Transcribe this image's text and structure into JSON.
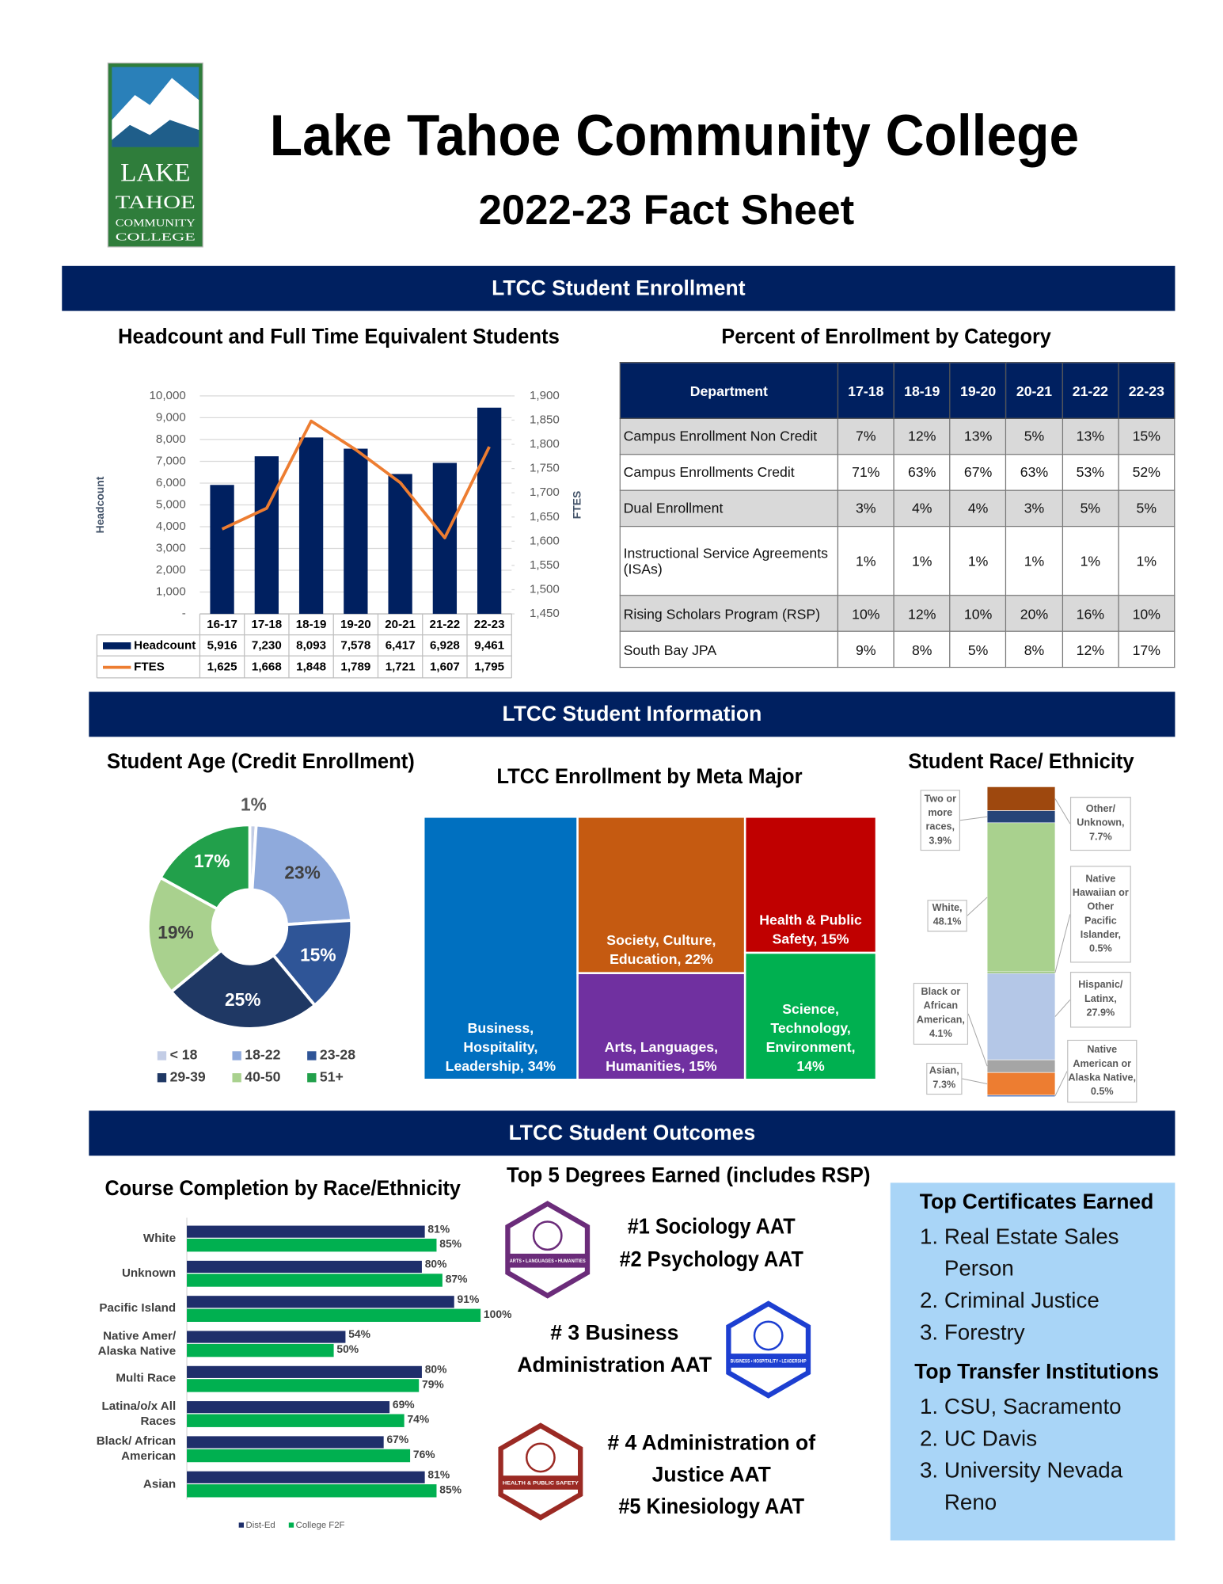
{
  "header": {
    "logo": [
      "LAKE",
      "TAHOE",
      "COMMUNITY",
      "COLLEGE"
    ],
    "title": "Lake Tahoe Community College",
    "subtitle": "2022-23 Fact Sheet"
  },
  "sections": [
    "LTCC Student Enrollment",
    "LTCC Student Information",
    "LTCC Student Outcomes"
  ],
  "enrollment_table": {
    "title": "Percent of Enrollment by Category",
    "columns": [
      "Department",
      "17-18",
      "18-19",
      "19-20",
      "20-21",
      "21-22",
      "22-23"
    ],
    "rows": [
      [
        "Campus Enrollment Non Credit",
        "7%",
        "12%",
        "13%",
        "5%",
        "13%",
        "15%"
      ],
      [
        "Campus Enrollments Credit",
        "71%",
        "63%",
        "67%",
        "63%",
        "53%",
        "52%"
      ],
      [
        "Dual Enrollment",
        "3%",
        "4%",
        "4%",
        "3%",
        "5%",
        "5%"
      ],
      [
        "Instructional Service Agreements (ISAs)",
        "1%",
        "1%",
        "1%",
        "1%",
        "1%",
        "1%"
      ],
      [
        "Rising Scholars Program (RSP)",
        "10%",
        "12%",
        "10%",
        "20%",
        "16%",
        "10%"
      ],
      [
        "South Bay JPA",
        "9%",
        "8%",
        "5%",
        "8%",
        "12%",
        "17%"
      ]
    ]
  },
  "chart_data": [
    {
      "type": "bar",
      "title": "Headcount and Full Time Equivalent Students",
      "categories": [
        "16-17",
        "17-18",
        "18-19",
        "19-20",
        "20-21",
        "21-22",
        "22-23"
      ],
      "series": [
        {
          "name": "Headcount",
          "type": "bar",
          "color": "#002060",
          "values": [
            5916,
            7230,
            8093,
            7578,
            6417,
            6928,
            9461
          ],
          "value_labels": [
            "5,916",
            "7,230",
            "8,093",
            "7,578",
            "6,417",
            "6,928",
            "9,461"
          ]
        },
        {
          "name": "FTES",
          "type": "line",
          "axis": "y2",
          "color": "#ed7d31",
          "values": [
            1625,
            1668,
            1848,
            1789,
            1721,
            1607,
            1795
          ],
          "value_labels": [
            "1,625",
            "1,668",
            "1,848",
            "1,789",
            "1,721",
            "1,607",
            "1,795"
          ]
        }
      ],
      "ylabel": "Headcount",
      "y2label": "FTES",
      "ylim": [
        0,
        10000
      ],
      "yticks": [
        {
          "value": 0,
          "label": "-"
        },
        {
          "value": 1000,
          "label": "1,000"
        },
        {
          "value": 2000,
          "label": "2,000"
        },
        {
          "value": 3000,
          "label": "3,000"
        },
        {
          "value": 4000,
          "label": "4,000"
        },
        {
          "value": 5000,
          "label": "5,000"
        },
        {
          "value": 6000,
          "label": "6,000"
        },
        {
          "value": 7000,
          "label": "7,000"
        },
        {
          "value": 8000,
          "label": "8,000"
        },
        {
          "value": 9000,
          "label": "9,000"
        },
        {
          "value": 10000,
          "label": "10,000"
        }
      ],
      "y2lim": [
        1450,
        1900
      ],
      "y2ticks": [
        {
          "value": 1450,
          "label": "1,450"
        },
        {
          "value": 1500,
          "label": "1,500"
        },
        {
          "value": 1550,
          "label": "1,550"
        },
        {
          "value": 1600,
          "label": "1,600"
        },
        {
          "value": 1650,
          "label": "1,650"
        },
        {
          "value": 1700,
          "label": "1,700"
        },
        {
          "value": 1750,
          "label": "1,750"
        },
        {
          "value": 1800,
          "label": "1,800"
        },
        {
          "value": 1850,
          "label": "1,850"
        },
        {
          "value": 1900,
          "label": "1,900"
        }
      ],
      "grid": true
    },
    {
      "type": "donut",
      "title": "Student Age (Credit Enrollment)",
      "categories": [
        "< 18",
        "18-22",
        "23-28",
        "29-39",
        "40-50",
        "51+"
      ],
      "values": [
        1,
        23,
        15,
        25,
        19,
        17
      ],
      "value_labels": [
        "1%",
        "23%",
        "15%",
        "25%",
        "19%",
        "17%"
      ],
      "colors": [
        "#c3cde6",
        "#8faadc",
        "#2f5597",
        "#1f3864",
        "#a9d18e",
        "#22a04b"
      ]
    },
    {
      "type": "treemap",
      "title": "LTCC Enrollment by Meta Major",
      "labels": [
        "Business, Hospitality, Leadership, 34%",
        "Society, Culture, Education, 22%",
        "Arts, Languages, Humanities, 15%",
        "Health & Public Safety, 15%",
        "Science, Technology, Environment, 14%"
      ],
      "values": [
        34,
        22,
        15,
        15,
        14
      ],
      "colors": [
        "#0070c0",
        "#c55a11",
        "#7030a0",
        "#c00000",
        "#00b050"
      ]
    },
    {
      "type": "stacked",
      "title": "Student Race/ Ethnicity",
      "labels": [
        "Other/ Unknown, 7.7%",
        "Two or more races, 3.9%",
        "White, 48.1%",
        "Native Hawaiian or Other Pacific Islander, 0.5%",
        "Hispanic/ Latinx, 27.9%",
        "Black or African American, 4.1%",
        "Asian, 7.3%",
        "Native American or Alaska Native, 0.5%"
      ],
      "values": [
        7.7,
        3.9,
        48.1,
        0.5,
        27.9,
        4.1,
        7.3,
        0.5
      ],
      "colors": [
        "#9e480e",
        "#264478",
        "#a9d18e",
        "#70ad47",
        "#b4c7e7",
        "#a5a5a5",
        "#ed7d31",
        "#4472c4"
      ]
    },
    {
      "type": "barh",
      "title": "Course Completion by Race/Ethnicity",
      "categories": [
        "White",
        "Unknown",
        "Pacific Island",
        "Native Amer/ Alaska Native",
        "Multi Race",
        "Latina/o/x All Races",
        "Black/ African American",
        "Asian"
      ],
      "series": [
        {
          "name": "Dist-Ed",
          "color": "#1f2f6b",
          "values": [
            81,
            80,
            91,
            54,
            80,
            69,
            67,
            81
          ],
          "value_labels": [
            "81%",
            "80%",
            "91%",
            "54%",
            "80%",
            "69%",
            "67%",
            "81%"
          ]
        },
        {
          "name": "College F2F",
          "color": "#00b050",
          "values": [
            85,
            87,
            100,
            50,
            79,
            74,
            76,
            85
          ],
          "value_labels": [
            "85%",
            "87%",
            "100%",
            "50%",
            "79%",
            "74%",
            "76%",
            "85%"
          ]
        }
      ]
    }
  ],
  "degrees": {
    "title": "Top 5 Degrees Earned (includes RSP)",
    "badges": [
      "ARTS • LANGUAGES • HUMANITIES",
      "BUSINESS • HOSPITALITY • LEADERSHIP",
      "HEALTH & PUBLIC SAFETY"
    ],
    "items": [
      "#1 Sociology AAT",
      "#2 Psychology AAT",
      "# 3 Business Administration AAT",
      "# 4 Administration of Justice AAT",
      "#5 Kinesiology AAT"
    ]
  },
  "certificates": {
    "title": "Top Certificates Earned",
    "items": [
      "Real Estate Sales Person",
      "Criminal Justice",
      "Forestry"
    ]
  },
  "transfers": {
    "title": "Top Transfer Institutions",
    "items": [
      "CSU, Sacramento",
      "UC Davis",
      "University Nevada Reno"
    ]
  }
}
